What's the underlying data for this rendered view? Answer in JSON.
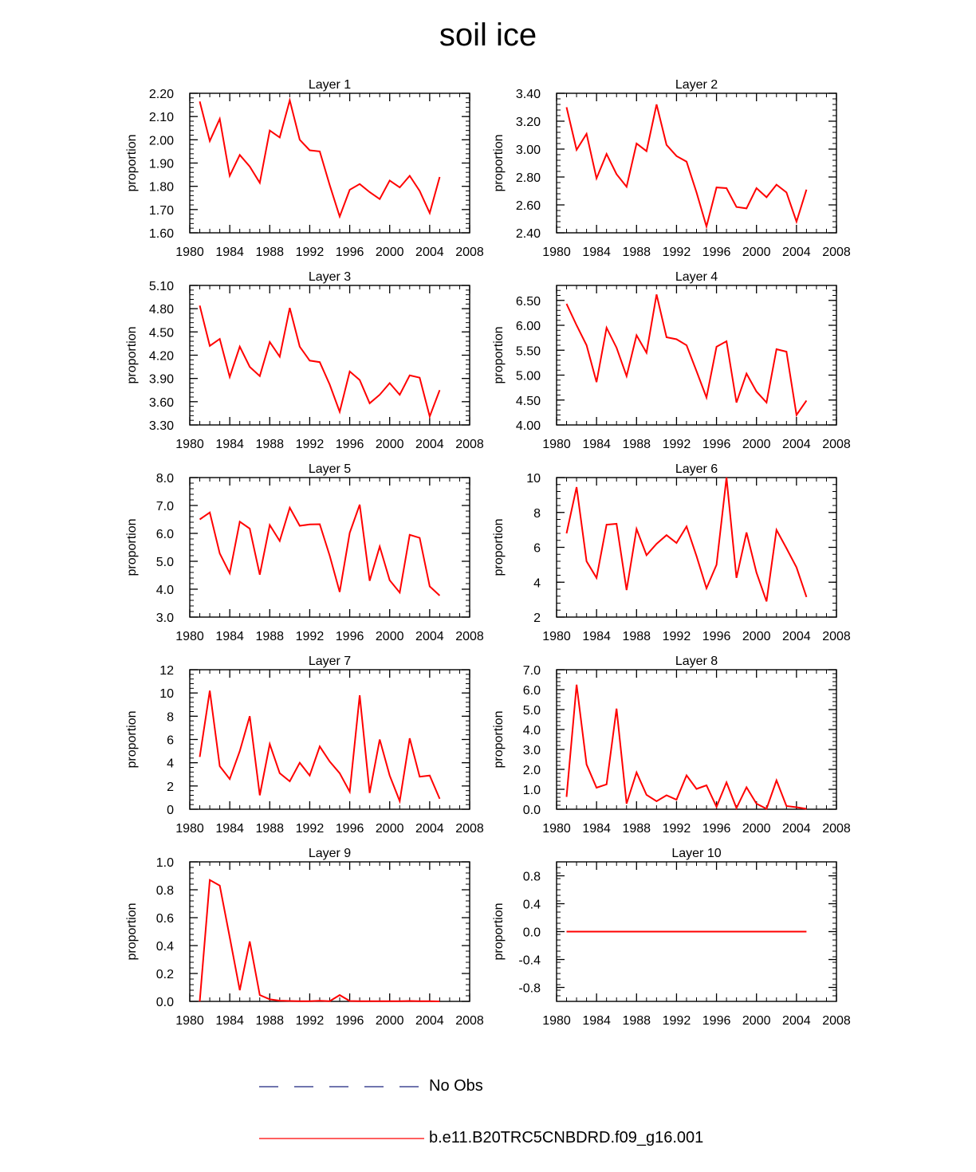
{
  "title": "soil ice",
  "legend": {
    "entries": [
      {
        "label": "No Obs",
        "color": "#1a237e",
        "style": "dashed"
      },
      {
        "label": "b.e11.B20TRC5CNBDRD.f09_g16.001",
        "color": "#ff0000",
        "style": "solid"
      }
    ]
  },
  "chart_data": [
    {
      "type": "line",
      "title": "Layer 1",
      "ylabel": "proportion",
      "xlim": [
        1980,
        2008
      ],
      "xticks": [
        1980,
        1984,
        1988,
        1992,
        1996,
        2000,
        2004,
        2008
      ],
      "ylim": [
        1.6,
        2.2
      ],
      "yticks": [
        1.6,
        1.7,
        1.8,
        1.9,
        2.0,
        2.1,
        2.2
      ],
      "ydecimals": 2,
      "x": [
        1981,
        1982,
        1983,
        1984,
        1985,
        1986,
        1987,
        1988,
        1989,
        1990,
        1991,
        1992,
        1993,
        1994,
        1995,
        1996,
        1997,
        1998,
        1999,
        2000,
        2001,
        2002,
        2003,
        2004,
        2005
      ],
      "series": [
        {
          "name": "b.e11.B20TRC5CNBDRD.f09_g16.001",
          "color": "#ff0000",
          "values": [
            2.165,
            1.995,
            2.09,
            1.845,
            1.935,
            1.885,
            1.815,
            2.04,
            2.01,
            2.17,
            2.0,
            1.955,
            1.95,
            1.805,
            1.67,
            1.785,
            1.81,
            1.775,
            1.745,
            1.825,
            1.795,
            1.845,
            1.78,
            1.685,
            1.84
          ]
        }
      ]
    },
    {
      "type": "line",
      "title": "Layer 2",
      "ylabel": "proportion",
      "xlim": [
        1980,
        2008
      ],
      "xticks": [
        1980,
        1984,
        1988,
        1992,
        1996,
        2000,
        2004,
        2008
      ],
      "ylim": [
        2.4,
        3.4
      ],
      "yticks": [
        2.4,
        2.6,
        2.8,
        3.0,
        3.2,
        3.4
      ],
      "ydecimals": 2,
      "x": [
        1981,
        1982,
        1983,
        1984,
        1985,
        1986,
        1987,
        1988,
        1989,
        1990,
        1991,
        1992,
        1993,
        1994,
        1995,
        1996,
        1997,
        1998,
        1999,
        2000,
        2001,
        2002,
        2003,
        2004,
        2005
      ],
      "series": [
        {
          "name": "b.e11.B20TRC5CNBDRD.f09_g16.001",
          "color": "#ff0000",
          "values": [
            3.3,
            2.995,
            3.11,
            2.79,
            2.965,
            2.82,
            2.73,
            3.04,
            2.985,
            3.32,
            3.03,
            2.95,
            2.91,
            2.69,
            2.445,
            2.725,
            2.72,
            2.585,
            2.575,
            2.72,
            2.655,
            2.745,
            2.69,
            2.48,
            2.71
          ]
        }
      ]
    },
    {
      "type": "line",
      "title": "Layer 3",
      "ylabel": "proportion",
      "xlim": [
        1980,
        2008
      ],
      "xticks": [
        1980,
        1984,
        1988,
        1992,
        1996,
        2000,
        2004,
        2008
      ],
      "ylim": [
        3.3,
        5.1
      ],
      "yticks": [
        3.3,
        3.6,
        3.9,
        4.2,
        4.5,
        4.8,
        5.1
      ],
      "ydecimals": 2,
      "x": [
        1981,
        1982,
        1983,
        1984,
        1985,
        1986,
        1987,
        1988,
        1989,
        1990,
        1991,
        1992,
        1993,
        1994,
        1995,
        1996,
        1997,
        1998,
        1999,
        2000,
        2001,
        2002,
        2003,
        2004,
        2005
      ],
      "series": [
        {
          "name": "b.e11.B20TRC5CNBDRD.f09_g16.001",
          "color": "#ff0000",
          "values": [
            4.84,
            4.32,
            4.41,
            3.92,
            4.31,
            4.05,
            3.93,
            4.37,
            4.18,
            4.81,
            4.31,
            4.13,
            4.11,
            3.82,
            3.47,
            3.99,
            3.88,
            3.58,
            3.69,
            3.84,
            3.69,
            3.94,
            3.91,
            3.41,
            3.75
          ]
        }
      ]
    },
    {
      "type": "line",
      "title": "Layer 4",
      "ylabel": "proportion",
      "xlim": [
        1980,
        2008
      ],
      "xticks": [
        1980,
        1984,
        1988,
        1992,
        1996,
        2000,
        2004,
        2008
      ],
      "ylim": [
        4.0,
        6.8
      ],
      "yticks": [
        4.0,
        4.5,
        5.0,
        5.5,
        6.0,
        6.5
      ],
      "ydecimals": 2,
      "x": [
        1981,
        1982,
        1983,
        1984,
        1985,
        1986,
        1987,
        1988,
        1989,
        1990,
        1991,
        1992,
        1993,
        1994,
        1995,
        1996,
        1997,
        1998,
        1999,
        2000,
        2001,
        2002,
        2003,
        2004,
        2005
      ],
      "series": [
        {
          "name": "b.e11.B20TRC5CNBDRD.f09_g16.001",
          "color": "#ff0000",
          "values": [
            6.43,
            6.0,
            5.6,
            4.86,
            5.95,
            5.55,
            4.98,
            5.8,
            5.45,
            6.62,
            5.76,
            5.72,
            5.6,
            5.08,
            4.55,
            5.57,
            5.68,
            4.45,
            5.03,
            4.67,
            4.45,
            5.52,
            5.47,
            4.2,
            4.49
          ]
        }
      ]
    },
    {
      "type": "line",
      "title": "Layer 5",
      "ylabel": "proportion",
      "xlim": [
        1980,
        2008
      ],
      "xticks": [
        1980,
        1984,
        1988,
        1992,
        1996,
        2000,
        2004,
        2008
      ],
      "ylim": [
        3.0,
        8.0
      ],
      "yticks": [
        3.0,
        4.0,
        5.0,
        6.0,
        7.0,
        8.0
      ],
      "ydecimals": 1,
      "x": [
        1981,
        1982,
        1983,
        1984,
        1985,
        1986,
        1987,
        1988,
        1989,
        1990,
        1991,
        1992,
        1993,
        1994,
        1995,
        1996,
        1997,
        1998,
        1999,
        2000,
        2001,
        2002,
        2003,
        2004,
        2005
      ],
      "series": [
        {
          "name": "b.e11.B20TRC5CNBDRD.f09_g16.001",
          "color": "#ff0000",
          "values": [
            6.5,
            6.75,
            5.28,
            4.57,
            6.42,
            6.17,
            4.52,
            6.3,
            5.73,
            6.92,
            6.27,
            6.32,
            6.33,
            5.2,
            3.9,
            6.02,
            7.03,
            4.3,
            5.53,
            4.32,
            3.88,
            5.95,
            5.84,
            4.1,
            3.77
          ]
        }
      ]
    },
    {
      "type": "line",
      "title": "Layer 6",
      "ylabel": "proportion",
      "xlim": [
        1980,
        2008
      ],
      "xticks": [
        1980,
        1984,
        1988,
        1992,
        1996,
        2000,
        2004,
        2008
      ],
      "ylim": [
        2,
        10
      ],
      "yticks": [
        2,
        4,
        6,
        8,
        10
      ],
      "ydecimals": 0,
      "x": [
        1981,
        1982,
        1983,
        1984,
        1985,
        1986,
        1987,
        1988,
        1989,
        1990,
        1991,
        1992,
        1993,
        1994,
        1995,
        1996,
        1997,
        1998,
        1999,
        2000,
        2001,
        2002,
        2003,
        2004,
        2005
      ],
      "series": [
        {
          "name": "b.e11.B20TRC5CNBDRD.f09_g16.001",
          "color": "#ff0000",
          "values": [
            6.8,
            9.45,
            5.2,
            4.25,
            7.3,
            7.35,
            3.55,
            7.05,
            5.55,
            6.2,
            6.7,
            6.25,
            7.2,
            5.5,
            3.65,
            5.0,
            10.0,
            4.25,
            6.85,
            4.55,
            2.9,
            7.0,
            5.95,
            4.85,
            3.15
          ]
        }
      ]
    },
    {
      "type": "line",
      "title": "Layer 7",
      "ylabel": "proportion",
      "xlim": [
        1980,
        2008
      ],
      "xticks": [
        1980,
        1984,
        1988,
        1992,
        1996,
        2000,
        2004,
        2008
      ],
      "ylim": [
        0,
        12
      ],
      "yticks": [
        0,
        2,
        4,
        6,
        8,
        10,
        12
      ],
      "ydecimals": 0,
      "x": [
        1981,
        1982,
        1983,
        1984,
        1985,
        1986,
        1987,
        1988,
        1989,
        1990,
        1991,
        1992,
        1993,
        1994,
        1995,
        1996,
        1997,
        1998,
        1999,
        2000,
        2001,
        2002,
        2003,
        2004,
        2005
      ],
      "series": [
        {
          "name": "b.e11.B20TRC5CNBDRD.f09_g16.001",
          "color": "#ff0000",
          "values": [
            4.5,
            10.2,
            3.7,
            2.6,
            5.0,
            8.0,
            1.2,
            5.6,
            3.1,
            2.4,
            4.0,
            2.9,
            5.4,
            4.1,
            3.1,
            1.5,
            9.8,
            1.4,
            6.0,
            2.9,
            0.7,
            6.1,
            2.8,
            2.9,
            0.9
          ]
        }
      ]
    },
    {
      "type": "line",
      "title": "Layer 8",
      "ylabel": "proportion",
      "xlim": [
        1980,
        2008
      ],
      "xticks": [
        1980,
        1984,
        1988,
        1992,
        1996,
        2000,
        2004,
        2008
      ],
      "ylim": [
        0,
        7.0
      ],
      "yticks": [
        0.0,
        1.0,
        2.0,
        3.0,
        4.0,
        5.0,
        6.0,
        7.0
      ],
      "ydecimals": 1,
      "x": [
        1981,
        1982,
        1983,
        1984,
        1985,
        1986,
        1987,
        1988,
        1989,
        1990,
        1991,
        1992,
        1993,
        1994,
        1995,
        1996,
        1997,
        1998,
        1999,
        2000,
        2001,
        2002,
        2003,
        2004,
        2005
      ],
      "series": [
        {
          "name": "b.e11.B20TRC5CNBDRD.f09_g16.001",
          "color": "#ff0000",
          "values": [
            0.62,
            6.25,
            2.25,
            1.08,
            1.25,
            5.05,
            0.28,
            1.85,
            0.72,
            0.4,
            0.7,
            0.48,
            1.7,
            1.02,
            1.2,
            0.12,
            1.35,
            0.06,
            1.1,
            0.28,
            0.02,
            1.45,
            0.16,
            0.1,
            0.02
          ]
        }
      ]
    },
    {
      "type": "line",
      "title": "Layer 9",
      "ylabel": "proportion",
      "xlim": [
        1980,
        2008
      ],
      "xticks": [
        1980,
        1984,
        1988,
        1992,
        1996,
        2000,
        2004,
        2008
      ],
      "ylim": [
        0,
        1.0
      ],
      "yticks": [
        0.0,
        0.2,
        0.4,
        0.6,
        0.8,
        1.0
      ],
      "ydecimals": 1,
      "x": [
        1981,
        1982,
        1983,
        1984,
        1985,
        1986,
        1987,
        1988,
        1989,
        1990,
        1991,
        1992,
        1993,
        1994,
        1995,
        1996,
        1997,
        1998,
        1999,
        2000,
        2001,
        2002,
        2003,
        2004,
        2005
      ],
      "series": [
        {
          "name": "b.e11.B20TRC5CNBDRD.f09_g16.001",
          "color": "#ff0000",
          "values": [
            0.0,
            0.87,
            0.83,
            0.46,
            0.08,
            0.43,
            0.045,
            0.015,
            0.005,
            0.003,
            0.002,
            0.002,
            0.004,
            0.002,
            0.045,
            0.003,
            0.002,
            0.002,
            0.001,
            0.001,
            0.001,
            0.003,
            0.001,
            0.001,
            0.0
          ]
        }
      ]
    },
    {
      "type": "line",
      "title": "Layer 10",
      "ylabel": "proportion",
      "xlim": [
        1980,
        2008
      ],
      "xticks": [
        1980,
        1984,
        1988,
        1992,
        1996,
        2000,
        2004,
        2008
      ],
      "ylim": [
        -1.0,
        1.0
      ],
      "yticks": [
        -0.8,
        -0.4,
        0.0,
        0.4,
        0.8
      ],
      "ydecimals": 1,
      "x": [
        1981,
        1982,
        1983,
        1984,
        1985,
        1986,
        1987,
        1988,
        1989,
        1990,
        1991,
        1992,
        1993,
        1994,
        1995,
        1996,
        1997,
        1998,
        1999,
        2000,
        2001,
        2002,
        2003,
        2004,
        2005
      ],
      "series": [
        {
          "name": "b.e11.B20TRC5CNBDRD.f09_g16.001",
          "color": "#ff0000",
          "values": [
            0,
            0,
            0,
            0,
            0,
            0,
            0,
            0,
            0,
            0,
            0,
            0,
            0,
            0,
            0,
            0,
            0,
            0,
            0,
            0,
            0,
            0,
            0,
            0,
            0
          ]
        }
      ]
    }
  ]
}
